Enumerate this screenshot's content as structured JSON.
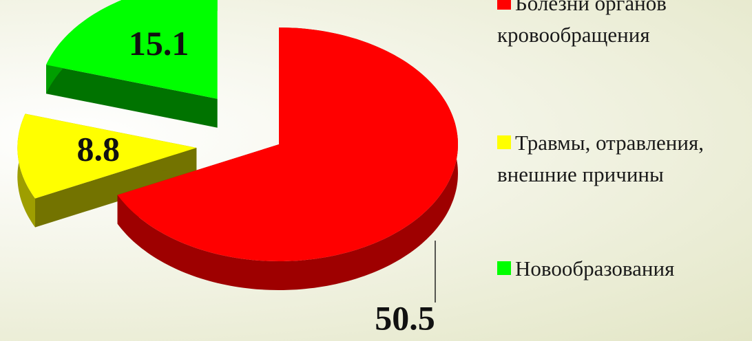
{
  "chart_data": {
    "type": "pie",
    "categories": [
      "Болезни органов кровообращения",
      "Травмы, отравления, внешние причины",
      "Новообразования"
    ],
    "values": [
      50.5,
      8.8,
      15.1
    ],
    "colors": [
      "#ff0000",
      "#ffff00",
      "#00ff00"
    ]
  }
}
